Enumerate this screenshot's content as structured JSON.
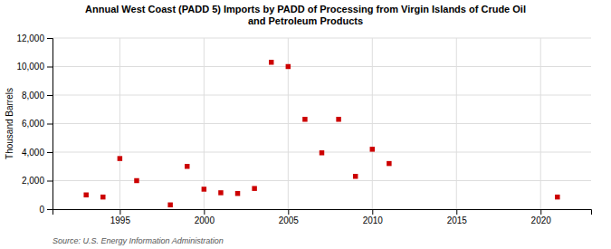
{
  "chart_data": {
    "type": "scatter",
    "title": "Annual West Coast (PADD 5) Imports by PADD of Processing from Virgin Islands of Crude Oil\nand Petroleum Products",
    "y_label": "Thousand Barrels",
    "source": "Source: U.S. Energy Information Administration",
    "x": [
      1993,
      1994,
      1995,
      1996,
      1998,
      1999,
      2000,
      2001,
      2002,
      2003,
      2004,
      2005,
      2006,
      2007,
      2008,
      2009,
      2010,
      2011,
      2021
    ],
    "values": [
      1000,
      850,
      3550,
      2000,
      300,
      3000,
      1400,
      1150,
      1100,
      1450,
      10300,
      10000,
      6300,
      3950,
      6300,
      2300,
      4200,
      3200,
      850
    ],
    "color": "#cc0000",
    "marker": "square",
    "xlim": [
      1991,
      2023
    ],
    "ylim": [
      0,
      12000
    ],
    "xticks": [
      1995,
      2000,
      2005,
      2010,
      2015,
      2020
    ],
    "yticks": [
      0,
      {
        "value": 2000,
        "label": "2,000"
      },
      {
        "value": 4000,
        "label": "4,000"
      },
      {
        "value": 6000,
        "label": "6,000"
      },
      {
        "value": 8000,
        "label": "8,000"
      },
      {
        "value": 10000,
        "label": "10,000"
      },
      {
        "value": 12000,
        "label": "12,000"
      }
    ],
    "grid": true
  }
}
